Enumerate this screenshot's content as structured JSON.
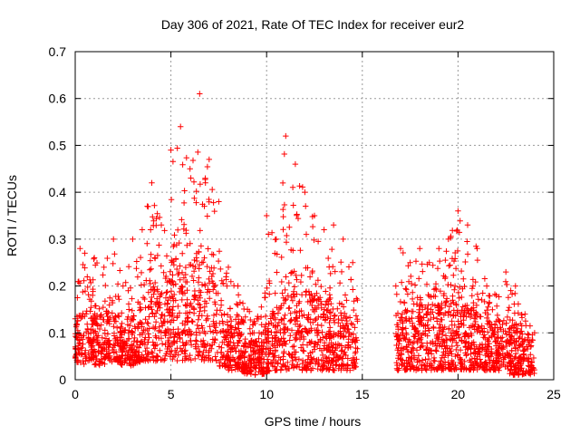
{
  "chart_data": {
    "type": "scatter",
    "title": "Day 306 of 2021, Rate Of TEC Index for receiver eur2",
    "xlabel": "GPS time / hours",
    "ylabel": "ROTI / TECUs",
    "xlim": [
      0,
      25
    ],
    "ylim": [
      0,
      0.7
    ],
    "xticks": [
      0,
      5,
      10,
      15,
      20,
      25
    ],
    "yticks": [
      0,
      0.1,
      0.2,
      0.3,
      0.4,
      0.5,
      0.6,
      0.7
    ],
    "grid": true,
    "marker": "plus",
    "color": "#ff0000",
    "data_gap_hours": [
      14.75,
      16.75
    ],
    "envelope": {
      "x": [
        0.0,
        0.25,
        0.5,
        1.0,
        1.5,
        2.0,
        2.5,
        3.0,
        3.5,
        4.0,
        4.5,
        5.0,
        5.5,
        6.0,
        6.5,
        7.0,
        7.5,
        8.0,
        8.5,
        9.0,
        9.5,
        10.0,
        10.5,
        11.0,
        11.5,
        12.0,
        12.5,
        13.0,
        13.5,
        14.0,
        14.5,
        14.75,
        16.75,
        17.0,
        17.5,
        18.0,
        18.5,
        19.0,
        19.5,
        20.0,
        20.5,
        21.0,
        21.5,
        22.0,
        22.5,
        23.0,
        23.5,
        24.0
      ],
      "y_max": [
        0.13,
        0.28,
        0.27,
        0.26,
        0.24,
        0.3,
        0.2,
        0.3,
        0.32,
        0.42,
        0.33,
        0.49,
        0.54,
        0.45,
        0.61,
        0.47,
        0.38,
        0.24,
        0.2,
        0.15,
        0.13,
        0.35,
        0.3,
        0.52,
        0.46,
        0.4,
        0.35,
        0.32,
        0.33,
        0.3,
        0.25,
        0.17,
        0.2,
        0.28,
        0.25,
        0.28,
        0.25,
        0.28,
        0.3,
        0.36,
        0.33,
        0.28,
        0.2,
        0.18,
        0.23,
        0.2,
        0.14,
        0.1
      ],
      "y_dense": [
        0.1,
        0.16,
        0.15,
        0.14,
        0.14,
        0.15,
        0.1,
        0.13,
        0.16,
        0.2,
        0.18,
        0.22,
        0.24,
        0.25,
        0.26,
        0.22,
        0.18,
        0.14,
        0.11,
        0.08,
        0.08,
        0.12,
        0.15,
        0.2,
        0.22,
        0.2,
        0.18,
        0.16,
        0.15,
        0.14,
        0.12,
        0.1,
        0.12,
        0.14,
        0.15,
        0.16,
        0.15,
        0.16,
        0.17,
        0.18,
        0.16,
        0.14,
        0.12,
        0.11,
        0.12,
        0.11,
        0.09,
        0.08
      ],
      "y_min": [
        0.04,
        0.03,
        0.03,
        0.03,
        0.03,
        0.04,
        0.03,
        0.03,
        0.04,
        0.04,
        0.04,
        0.04,
        0.04,
        0.04,
        0.04,
        0.04,
        0.03,
        0.02,
        0.02,
        0.01,
        0.01,
        0.01,
        0.02,
        0.02,
        0.02,
        0.02,
        0.02,
        0.02,
        0.02,
        0.02,
        0.02,
        0.02,
        0.02,
        0.02,
        0.02,
        0.02,
        0.02,
        0.02,
        0.02,
        0.02,
        0.02,
        0.02,
        0.02,
        0.02,
        0.01,
        0.01,
        0.01,
        0.01
      ]
    }
  }
}
